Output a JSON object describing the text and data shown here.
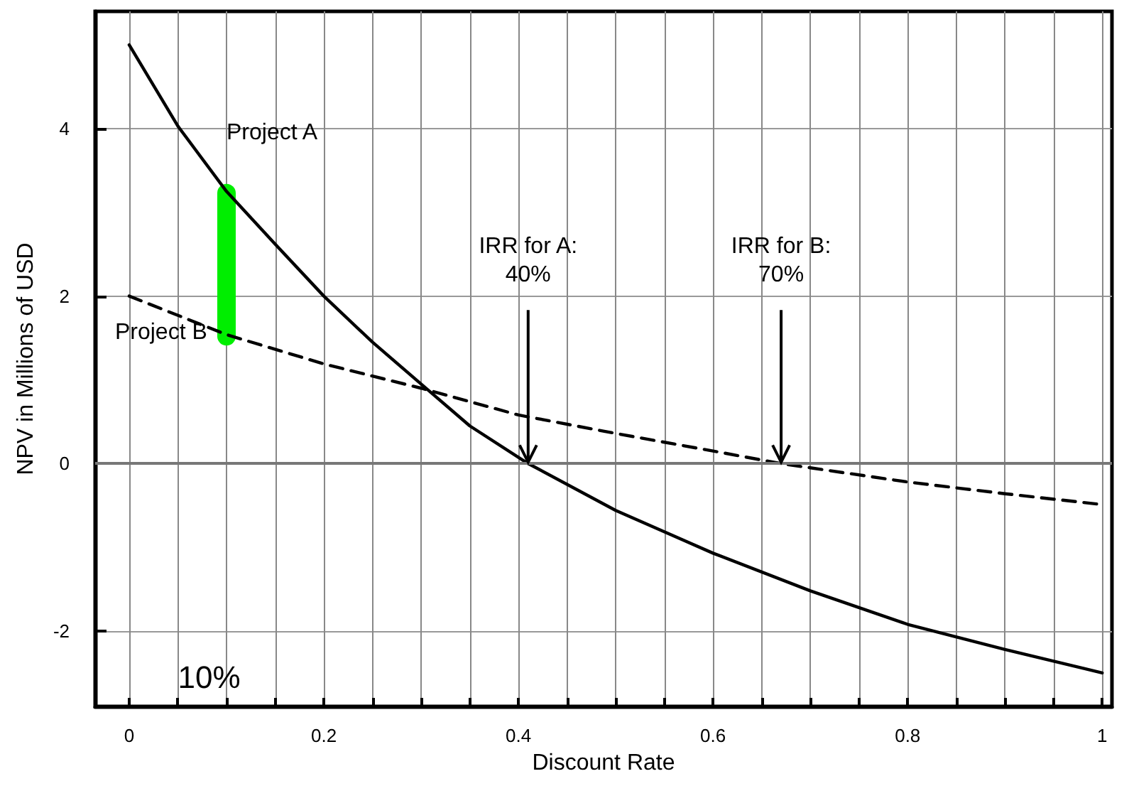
{
  "chart_data": {
    "type": "line",
    "xlabel": "Discount Rate",
    "ylabel": "NPV in Millions of USD",
    "xlim": [
      -0.035,
      1.01
    ],
    "ylim": [
      -2.9,
      5.4
    ],
    "xticks": [
      0,
      {
        "value": 0.05,
        "label": null
      },
      {
        "value": 0.1,
        "label": null
      },
      {
        "value": 0.15,
        "label": null
      },
      0.2,
      {
        "value": 0.25,
        "label": null
      },
      {
        "value": 0.3,
        "label": null
      },
      {
        "value": 0.35,
        "label": null
      },
      0.4,
      {
        "value": 0.45,
        "label": null
      },
      {
        "value": 0.5,
        "label": null
      },
      {
        "value": 0.55,
        "label": null
      },
      0.6,
      {
        "value": 0.65,
        "label": null
      },
      {
        "value": 0.7,
        "label": null
      },
      {
        "value": 0.75,
        "label": null
      },
      0.8,
      {
        "value": 0.85,
        "label": null
      },
      {
        "value": 0.9,
        "label": null
      },
      {
        "value": 0.95,
        "label": null
      },
      1
    ],
    "yticks": [
      -2,
      0,
      2,
      4
    ],
    "grid": true,
    "marker": "none",
    "series": [
      {
        "color": "#000000",
        "line_style": "solid",
        "x": [
          0,
          0.05,
          0.1,
          0.15,
          0.2,
          0.25,
          0.3,
          0.35,
          0.41,
          0.5,
          0.6,
          0.7,
          0.8,
          0.9,
          1
        ],
        "values": [
          5.0,
          4.03,
          3.25,
          2.62,
          2.0,
          1.45,
          0.95,
          0.45,
          0,
          -0.56,
          -1.07,
          -1.52,
          -1.92,
          -2.22,
          -2.5
        ]
      },
      {
        "color": "#000000",
        "line_style": "dashed",
        "x": [
          0,
          0.1,
          0.2,
          0.3,
          0.4,
          0.5,
          0.6,
          0.67,
          0.8,
          0.9,
          1
        ],
        "values": [
          2.0,
          1.54,
          1.19,
          0.9,
          0.58,
          0.36,
          0.15,
          0,
          -0.22,
          -0.36,
          -0.49
        ]
      },
      {
        "color": "#00ee00",
        "line_style": "solid",
        "x": [
          0.1,
          0.1
        ],
        "values": [
          1.52,
          3.23
        ]
      }
    ],
    "ref_lines": [
      {
        "axis": "y",
        "value": 0,
        "color": "#777777"
      }
    ],
    "annotations": [
      {
        "text": "Project A",
        "x": 0.1,
        "y": 3.23
      },
      {
        "text": "Project B",
        "x": 0,
        "y": 2
      },
      {
        "text": "IRR for A:\n40%",
        "x": 0.41,
        "y": 0
      },
      {
        "text": "IRR for B:\n70%",
        "x": 0.67,
        "y": 0
      },
      "10%"
    ]
  }
}
